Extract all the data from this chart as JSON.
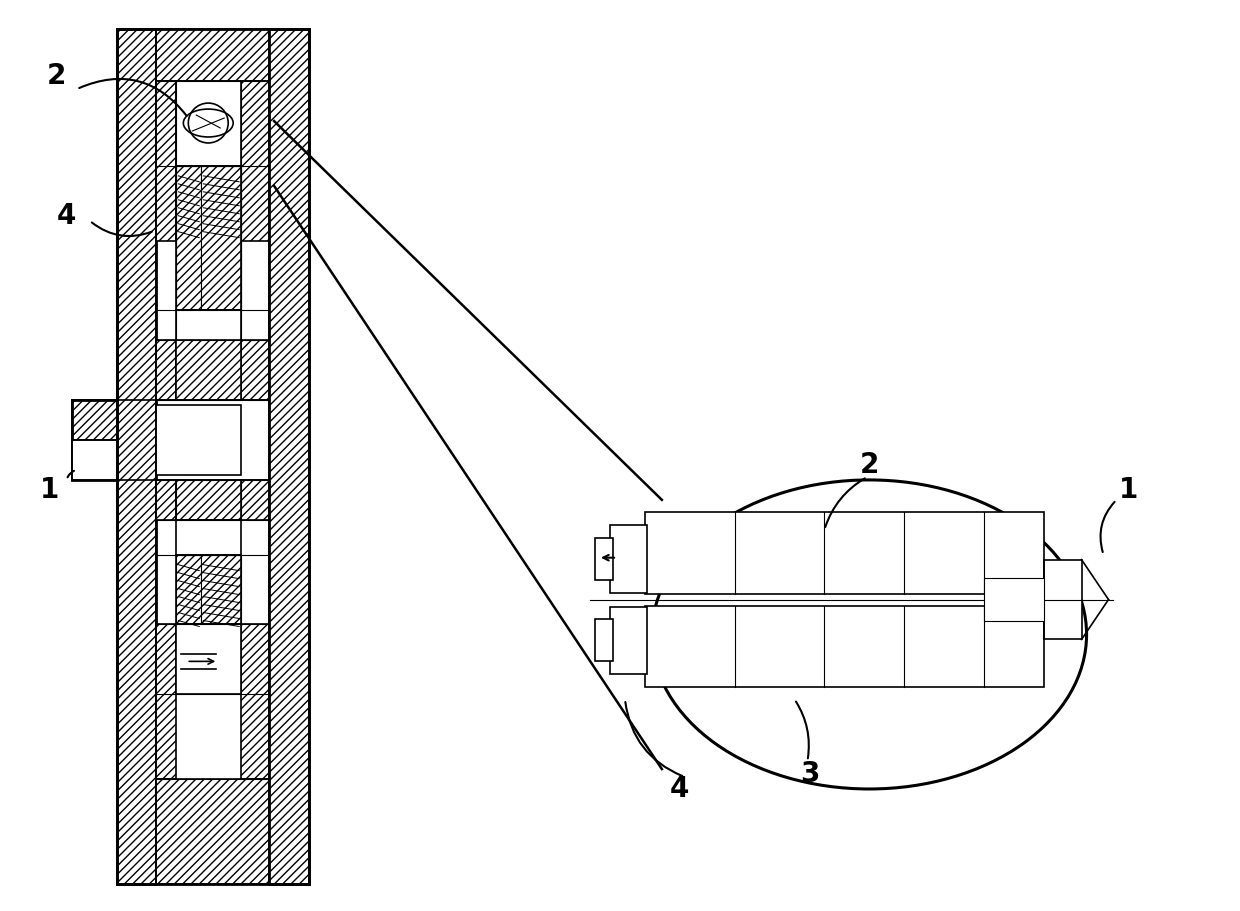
{
  "bg_color": "#ffffff",
  "line_color": "#000000",
  "fig_width": 12.4,
  "fig_height": 9.11,
  "lw_outer": 2.0,
  "lw_inner": 1.2,
  "lw_thin": 0.8,
  "hatch": "////",
  "label_fs": 20
}
